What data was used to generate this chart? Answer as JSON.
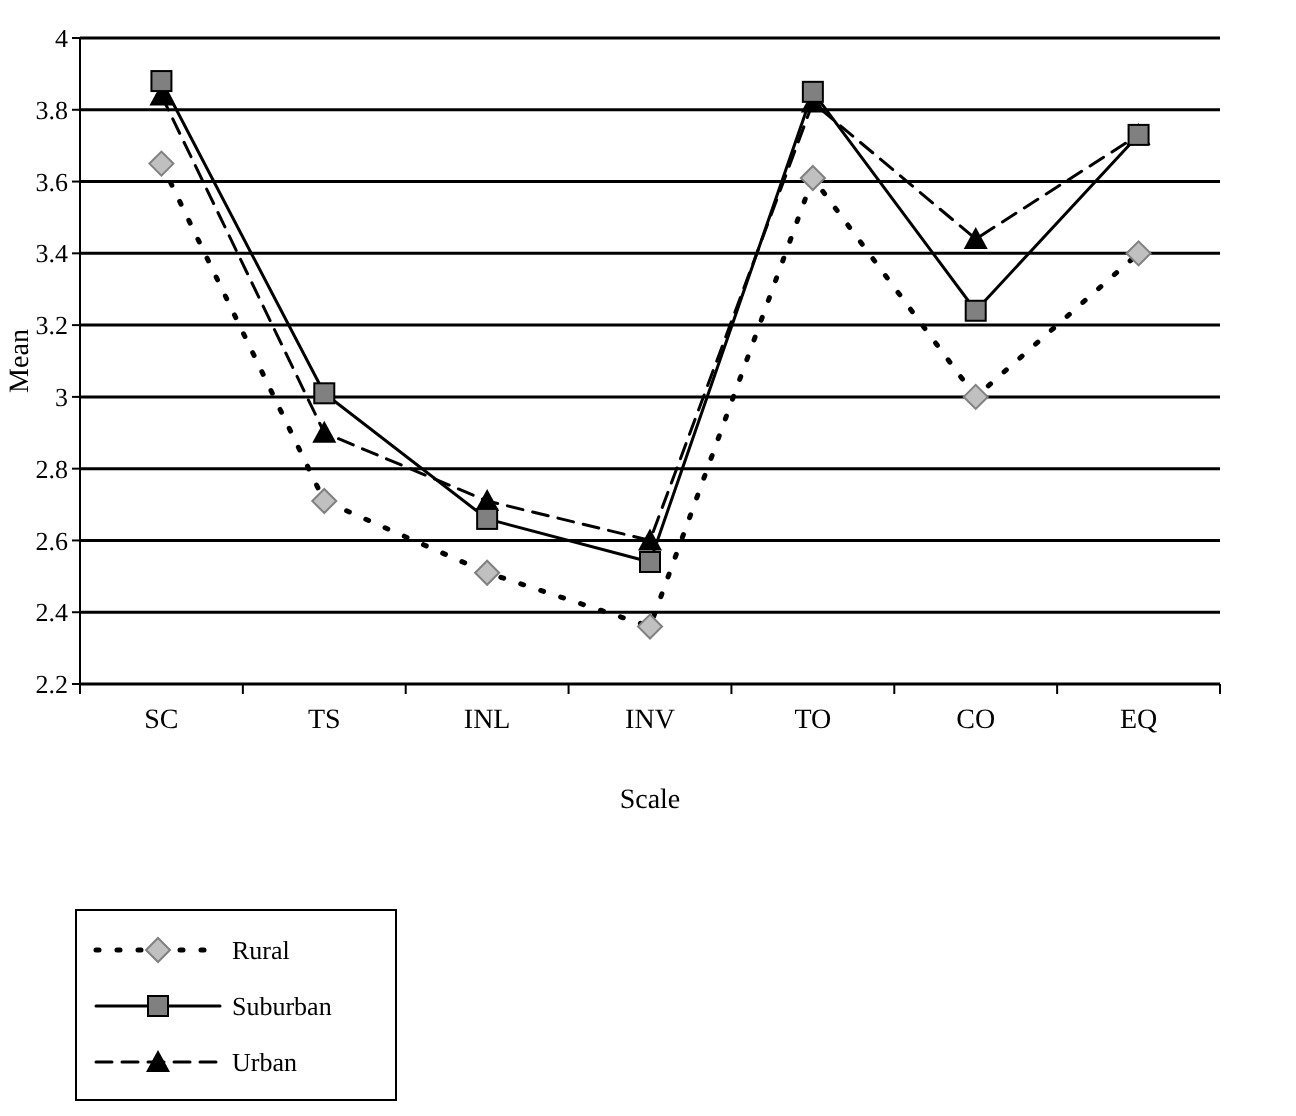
{
  "chart_data": {
    "type": "line",
    "xlabel": "Scale",
    "ylabel": "Mean",
    "categories": [
      "SC",
      "TS",
      "INL",
      "INV",
      "TO",
      "CO",
      "EQ"
    ],
    "series": [
      {
        "name": "Rural",
        "color": "#c0c0c0",
        "marker": "diamond",
        "line_style": "dotted",
        "values": [
          3.65,
          2.71,
          2.51,
          2.36,
          3.61,
          3.0,
          3.4
        ]
      },
      {
        "name": "Suburban",
        "color": "#808080",
        "marker": "square",
        "line_style": "solid",
        "values": [
          3.88,
          3.01,
          2.66,
          2.54,
          3.85,
          3.24,
          3.73
        ]
      },
      {
        "name": "Urban",
        "color": "#000000",
        "marker": "triangle",
        "line_style": "dashed",
        "values": [
          3.84,
          2.9,
          2.71,
          2.6,
          3.82,
          3.44,
          3.73
        ]
      }
    ],
    "ylim": [
      2.2,
      4
    ],
    "yticks": [
      2.2,
      2.4,
      2.6,
      2.8,
      3,
      3.2,
      3.4,
      3.6,
      3.8,
      4
    ],
    "grid": "y",
    "legend": "bottom left"
  }
}
